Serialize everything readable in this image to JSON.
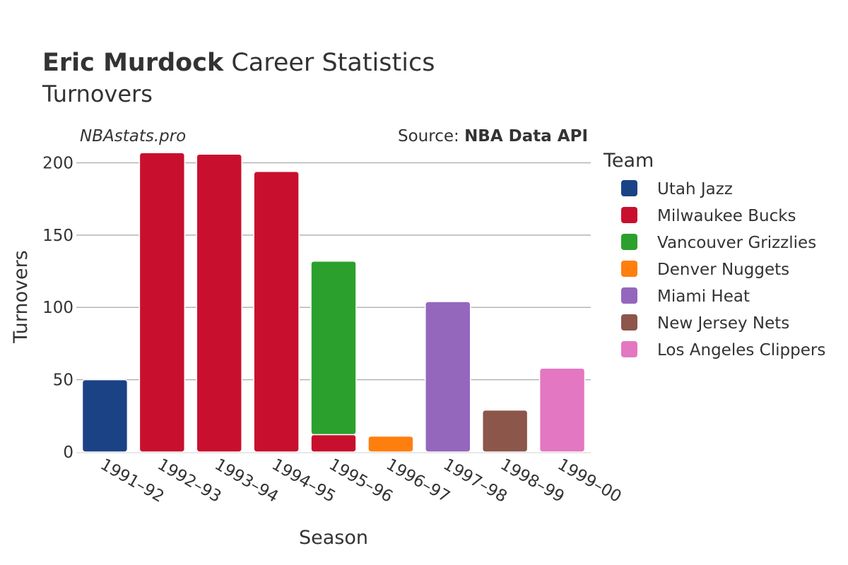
{
  "header": {
    "player_name": "Eric Murdock",
    "title_rest": " Career Statistics",
    "subtitle": "Turnovers"
  },
  "watermark": "NBAstats.pro",
  "source": {
    "prefix": "Source: ",
    "name": "NBA Data API"
  },
  "legend": {
    "title": "Team",
    "items": [
      {
        "label": "Utah Jazz",
        "color": "#1c4286"
      },
      {
        "label": "Milwaukee Bucks",
        "color": "#c8102e"
      },
      {
        "label": "Vancouver Grizzlies",
        "color": "#2ca02c"
      },
      {
        "label": "Denver Nuggets",
        "color": "#ff7f0e"
      },
      {
        "label": "Miami Heat",
        "color": "#9467bd"
      },
      {
        "label": "New Jersey Nets",
        "color": "#8c564b"
      },
      {
        "label": "Los Angeles Clippers",
        "color": "#e377c2"
      }
    ]
  },
  "chart_data": {
    "type": "bar",
    "stacked": true,
    "title": "Eric Murdock Career Statistics",
    "subtitle": "Turnovers",
    "xlabel": "Season",
    "ylabel": "Turnovers",
    "ylim": [
      0,
      210
    ],
    "yticks": [
      0,
      50,
      100,
      150,
      200
    ],
    "grid": true,
    "legend_position": "right",
    "categories": [
      "1991–92",
      "1992–93",
      "1993–94",
      "1994–95",
      "1995–96",
      "1996–97",
      "1997–98",
      "1998–99",
      "1999–00"
    ],
    "series": [
      {
        "name": "Utah Jazz",
        "color": "#1c4286",
        "values": [
          50,
          0,
          0,
          0,
          0,
          0,
          0,
          0,
          0
        ]
      },
      {
        "name": "Milwaukee Bucks",
        "color": "#c8102e",
        "values": [
          0,
          207,
          206,
          194,
          12,
          0,
          0,
          0,
          0
        ]
      },
      {
        "name": "Vancouver Grizzlies",
        "color": "#2ca02c",
        "values": [
          0,
          0,
          0,
          0,
          120,
          0,
          0,
          0,
          0
        ]
      },
      {
        "name": "Denver Nuggets",
        "color": "#ff7f0e",
        "values": [
          0,
          0,
          0,
          0,
          0,
          11,
          0,
          0,
          0
        ]
      },
      {
        "name": "Miami Heat",
        "color": "#9467bd",
        "values": [
          0,
          0,
          0,
          0,
          0,
          0,
          104,
          0,
          0
        ]
      },
      {
        "name": "New Jersey Nets",
        "color": "#8c564b",
        "values": [
          0,
          0,
          0,
          0,
          0,
          0,
          0,
          29,
          0
        ]
      },
      {
        "name": "Los Angeles Clippers",
        "color": "#e377c2",
        "values": [
          0,
          0,
          0,
          0,
          0,
          0,
          0,
          0,
          58
        ]
      }
    ]
  }
}
